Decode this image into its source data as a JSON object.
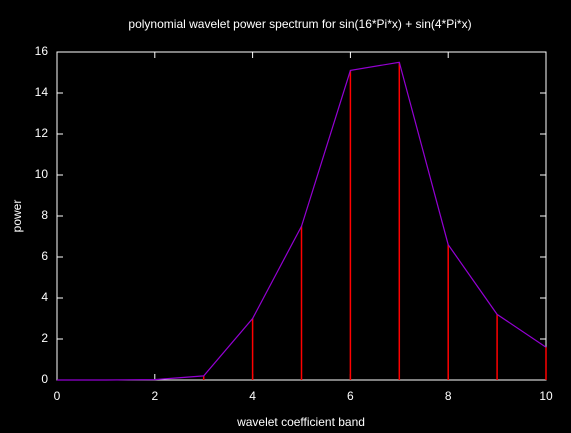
{
  "chart_data": {
    "type": "impulse-line",
    "title": "polynomial wavelet power spectrum for sin(16*Pi*x) + sin(4*Pi*x)",
    "xlabel": "wavelet coefficient band",
    "ylabel": "power",
    "x": [
      0,
      1,
      2,
      3,
      4,
      5,
      6,
      7,
      8,
      9,
      10
    ],
    "values": [
      0,
      0,
      0.02,
      0.2,
      3.0,
      7.5,
      15.1,
      15.5,
      6.6,
      3.2,
      1.6
    ],
    "line_color": "#9400d3",
    "impulse_color": "#ff0000",
    "xlim": [
      0,
      10
    ],
    "xticks": [
      0,
      2,
      4,
      6,
      8,
      10
    ],
    "ylim": [
      0,
      16
    ],
    "yticks": [
      0,
      2,
      4,
      6,
      8,
      10,
      12,
      14,
      16
    ]
  }
}
